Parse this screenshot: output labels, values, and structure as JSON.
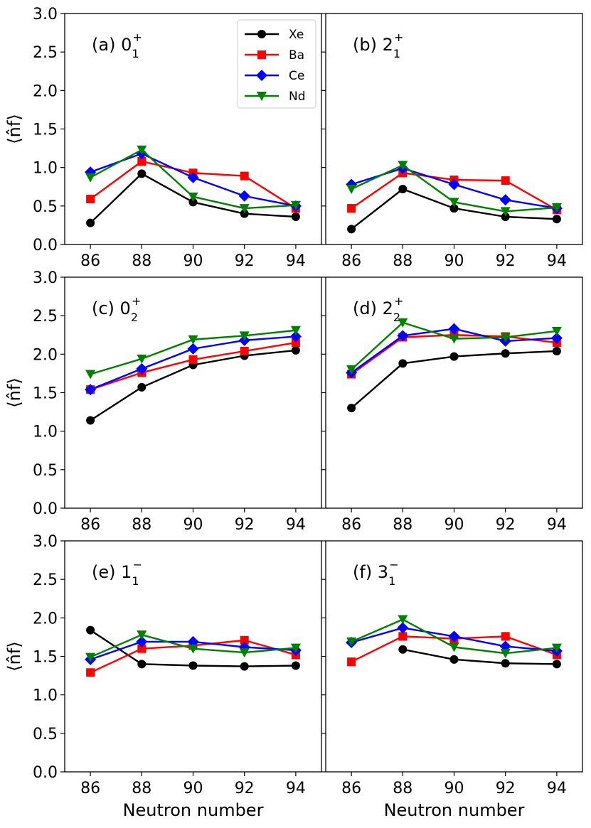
{
  "chart_data": {
    "type": "line",
    "x": [
      86,
      88,
      90,
      92,
      94
    ],
    "xlabel": "Neutron number",
    "ylabel": "⟨n̂f⟩",
    "ylim": [
      0,
      3
    ],
    "yticks": [
      "0.0",
      "0.5",
      "1.0",
      "1.5",
      "2.0",
      "2.5",
      "3.0"
    ],
    "xticks": [
      "86",
      "88",
      "90",
      "92",
      "94"
    ],
    "series_styles": [
      {
        "name": "Xe",
        "color": "#000000",
        "marker": "circle"
      },
      {
        "name": "Ba",
        "color": "#ff0000",
        "marker": "square"
      },
      {
        "name": "Ce",
        "color": "#0000ff",
        "marker": "diamond"
      },
      {
        "name": "Nd",
        "color": "#008000",
        "marker": "triangle-down"
      }
    ],
    "legend": {
      "entries": [
        "Xe",
        "Ba",
        "Ce",
        "Nd"
      ],
      "placement": "top-right of panel (a)"
    },
    "panels": [
      {
        "label": "(a) ",
        "state": "0",
        "sub": "1",
        "sup": "+",
        "series": [
          {
            "name": "Xe",
            "values": [
              0.28,
              0.92,
              0.55,
              0.4,
              0.36
            ]
          },
          {
            "name": "Ba",
            "values": [
              0.59,
              1.08,
              0.93,
              0.89,
              0.47
            ]
          },
          {
            "name": "Ce",
            "values": [
              0.94,
              1.18,
              0.87,
              0.63,
              0.5
            ]
          },
          {
            "name": "Nd",
            "values": [
              0.87,
              1.23,
              0.62,
              0.47,
              0.51
            ]
          }
        ]
      },
      {
        "label": "(b) ",
        "state": "2",
        "sub": "1",
        "sup": "+",
        "series": [
          {
            "name": "Xe",
            "values": [
              0.2,
              0.72,
              0.47,
              0.36,
              0.33
            ]
          },
          {
            "name": "Ba",
            "values": [
              0.47,
              0.93,
              0.84,
              0.83,
              0.45
            ]
          },
          {
            "name": "Ce",
            "values": [
              0.78,
              0.99,
              0.78,
              0.58,
              0.47
            ]
          },
          {
            "name": "Nd",
            "values": [
              0.72,
              1.03,
              0.55,
              0.43,
              0.48
            ]
          }
        ]
      },
      {
        "label": "(c) ",
        "state": "0",
        "sub": "2",
        "sup": "+",
        "series": [
          {
            "name": "Xe",
            "values": [
              1.14,
              1.57,
              1.86,
              1.98,
              2.05
            ]
          },
          {
            "name": "Ba",
            "values": [
              1.54,
              1.76,
              1.93,
              2.04,
              2.15
            ]
          },
          {
            "name": "Ce",
            "values": [
              1.54,
              1.81,
              2.07,
              2.18,
              2.23
            ]
          },
          {
            "name": "Nd",
            "values": [
              1.74,
              1.94,
              2.19,
              2.24,
              2.31
            ]
          }
        ]
      },
      {
        "label": "(d) ",
        "state": "2",
        "sub": "2",
        "sup": "+",
        "series": [
          {
            "name": "Xe",
            "values": [
              1.3,
              1.88,
              1.97,
              2.01,
              2.04
            ]
          },
          {
            "name": "Ba",
            "values": [
              1.74,
              2.22,
              2.25,
              2.23,
              2.15
            ]
          },
          {
            "name": "Ce",
            "values": [
              1.76,
              2.24,
              2.33,
              2.17,
              2.21
            ]
          },
          {
            "name": "Nd",
            "values": [
              1.8,
              2.41,
              2.2,
              2.22,
              2.3
            ]
          }
        ]
      },
      {
        "label": "(e) ",
        "state": "1",
        "sub": "1",
        "sup": "−",
        "series": [
          {
            "name": "Xe",
            "values": [
              1.84,
              1.4,
              1.38,
              1.37,
              1.38
            ]
          },
          {
            "name": "Ba",
            "values": [
              1.29,
              1.6,
              1.64,
              1.71,
              1.52
            ]
          },
          {
            "name": "Ce",
            "values": [
              1.46,
              1.69,
              1.69,
              1.62,
              1.58
            ]
          },
          {
            "name": "Nd",
            "values": [
              1.49,
              1.78,
              1.6,
              1.55,
              1.61
            ]
          }
        ]
      },
      {
        "label": "(f) ",
        "state": "3",
        "sub": "1",
        "sup": "−",
        "series": [
          {
            "name": "Xe",
            "values": [
              null,
              1.59,
              1.46,
              1.41,
              1.4
            ]
          },
          {
            "name": "Ba",
            "values": [
              1.43,
              1.76,
              1.73,
              1.76,
              1.52
            ]
          },
          {
            "name": "Ce",
            "values": [
              1.68,
              1.87,
              1.76,
              1.63,
              1.57
            ]
          },
          {
            "name": "Nd",
            "values": [
              1.69,
              1.98,
              1.62,
              1.54,
              1.61
            ]
          }
        ]
      }
    ]
  }
}
